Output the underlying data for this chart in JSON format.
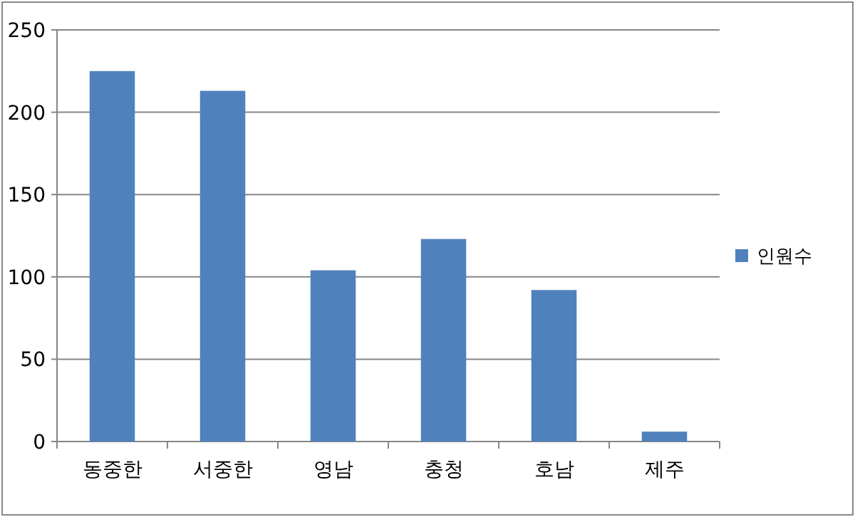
{
  "chart_data": {
    "type": "bar",
    "categories": [
      "동중한",
      "서중한",
      "영남",
      "충청",
      "호남",
      "제주"
    ],
    "series": [
      {
        "name": "인원수",
        "color": "#4f81bd",
        "values": [
          225,
          213,
          104,
          123,
          92,
          6
        ]
      }
    ],
    "ylim": [
      0,
      250
    ],
    "yticks": [
      0,
      50,
      100,
      150,
      200,
      250
    ],
    "grid": "y",
    "legend": "right"
  }
}
